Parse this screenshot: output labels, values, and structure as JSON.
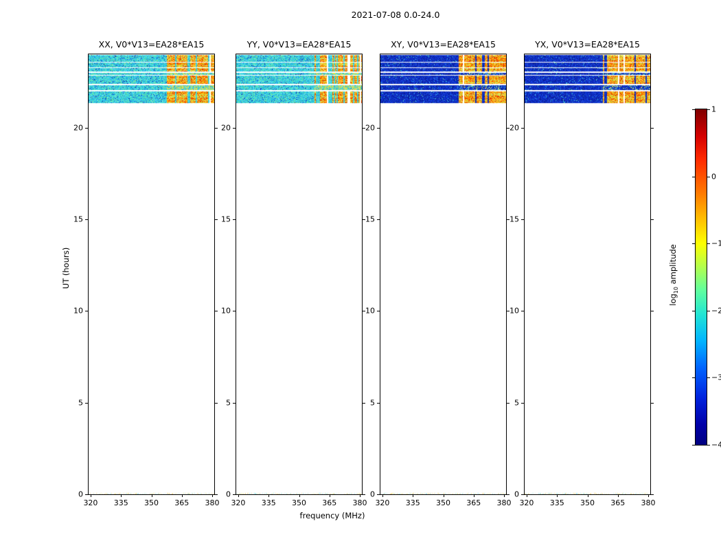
{
  "chart_data": {
    "type": "heatmap",
    "title": "2021-07-08 0.0-24.0",
    "xlabel": "frequency (MHz)",
    "ylabel": "UT (hours)",
    "xlim": [
      319,
      381
    ],
    "ylim": [
      0,
      24
    ],
    "xticks": [
      320,
      335,
      350,
      365,
      380
    ],
    "yticks": [
      0,
      5,
      10,
      15,
      20
    ],
    "panels": [
      {
        "id": "XX",
        "title": "XX, V0*V13=EA28*EA15",
        "noise": "cyan",
        "seed": 11
      },
      {
        "id": "YY",
        "title": "YY, V0*V13=EA28*EA15",
        "noise": "cyan",
        "seed": 22
      },
      {
        "id": "XY",
        "title": "XY, V0*V13=EA28*EA15",
        "noise": "blue",
        "seed": 33
      },
      {
        "id": "YX",
        "title": "YX, V0*V13=EA28*EA15",
        "noise": "blue",
        "seed": 44
      }
    ],
    "bands": [
      {
        "ut_start": 23.6,
        "ut_end": 23.97,
        "hot": true
      },
      {
        "ut_start": 23.3,
        "ut_end": 23.56,
        "hot": true
      },
      {
        "ut_start": 23.05,
        "ut_end": 23.24,
        "hot": true
      },
      {
        "ut_start": 22.88,
        "ut_end": 22.98,
        "hot": false
      },
      {
        "ut_start": 22.4,
        "ut_end": 22.84,
        "hot": true
      },
      {
        "ut_start": 22.04,
        "ut_end": 22.32,
        "hot": false
      },
      {
        "ut_start": 21.35,
        "ut_end": 21.96,
        "hot": true
      },
      {
        "ut_start": 0.0,
        "ut_end": 0.08,
        "hot": false,
        "speckle": true
      }
    ],
    "hot_freq_range": [
      357,
      381
    ],
    "colorbar": {
      "label_pre": "log",
      "label_sub": "10",
      "label_post": " amplitude",
      "vmin": -4,
      "vmax": 1,
      "colormap": "jet",
      "ticks": [
        {
          "value": 1,
          "label": "1"
        },
        {
          "value": 0,
          "label": "0"
        },
        {
          "value": -1,
          "label": "−1"
        },
        {
          "value": -2,
          "label": "−2"
        },
        {
          "value": -3,
          "label": "−3"
        },
        {
          "value": -4,
          "label": "−4"
        }
      ],
      "stops": [
        [
          0,
          "#7f0000"
        ],
        [
          0.08,
          "#d40000"
        ],
        [
          0.15,
          "#ff2a00"
        ],
        [
          0.25,
          "#ff7a00"
        ],
        [
          0.33,
          "#ffc100"
        ],
        [
          0.4,
          "#fdff00"
        ],
        [
          0.47,
          "#b2ff4d"
        ],
        [
          0.54,
          "#5fff9e"
        ],
        [
          0.61,
          "#22e5d3"
        ],
        [
          0.69,
          "#00b4ff"
        ],
        [
          0.77,
          "#0064ff"
        ],
        [
          0.86,
          "#0022dd"
        ],
        [
          0.94,
          "#0000a8"
        ],
        [
          1,
          "#000080"
        ]
      ]
    },
    "palettes": {
      "cyan": [
        "#35d6e0",
        "#2bc4ee",
        "#45e0cc",
        "#57d8f2",
        "#23aee0",
        "#4ce4b8",
        "#66e8e4",
        "#31bcd8",
        "#79e89a",
        "#1f96d8"
      ],
      "blue": [
        "#0a24b4",
        "#1030cc",
        "#0c3ad8",
        "#071ea0",
        "#1844e4",
        "#0a2cc0",
        "#2148d0",
        "#0d1e96"
      ],
      "hot": [
        "#ff8c00",
        "#ff6a00",
        "#ffa200",
        "#ff4e00",
        "#f0b400",
        "#e03c00",
        "#ffc400",
        "#d42a00"
      ],
      "warm": [
        "#ffe25a",
        "#d8e84a",
        "#aadd55",
        "#ffd040",
        "#c8e060"
      ],
      "speckle": [
        "#bfeef0",
        "#ffe9a0",
        "#9fe4ee",
        "#ffffff",
        "#e2f6d8",
        "#ffd27f"
      ]
    }
  }
}
